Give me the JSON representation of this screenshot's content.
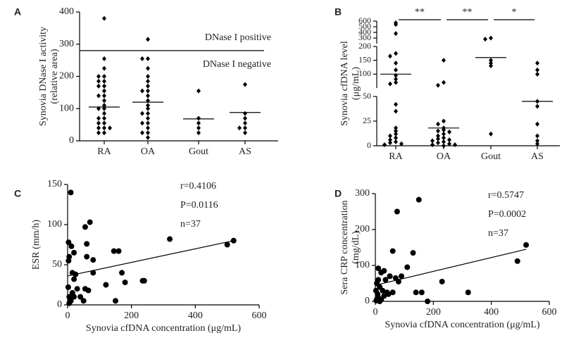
{
  "chart_data": [
    {
      "type": "strip",
      "panel": "A",
      "ylabel": [
        "Synovia DNase I activity",
        "(relative area)"
      ],
      "categories": [
        "RA",
        "OA",
        "Gout",
        "AS"
      ],
      "values": [
        [
          380,
          255,
          225,
          200,
          200,
          185,
          185,
          170,
          170,
          155,
          140,
          140,
          125,
          110,
          100,
          100,
          85,
          70,
          70,
          55,
          55,
          40,
          40,
          40,
          25,
          25
        ],
        [
          315,
          255,
          255,
          225,
          200,
          185,
          170,
          155,
          155,
          140,
          125,
          110,
          100,
          85,
          85,
          70,
          55,
          55,
          40,
          25,
          25,
          10
        ],
        [
          155,
          70,
          55,
          40,
          25
        ],
        [
          175,
          85,
          70,
          55,
          40,
          40,
          25
        ]
      ],
      "means": [
        105,
        120,
        68,
        88
      ],
      "threshold": {
        "value": 280,
        "above": "DNase I positive",
        "below": "DNase I negative"
      },
      "ylim": [
        0,
        400
      ],
      "yticks": [
        0,
        100,
        200,
        300,
        400
      ],
      "color": "#000000"
    },
    {
      "type": "strip",
      "panel": "B",
      "ylabel": [
        "Synovia cfDNA level",
        "(μg/mL)"
      ],
      "categories": [
        "RA",
        "OA",
        "Gout",
        "AS"
      ],
      "values": [
        [
          570,
          540,
          380,
          175,
          165,
          140,
          115,
          95,
          82,
          70,
          65,
          42,
          35,
          18,
          15,
          12,
          10,
          8,
          6,
          4,
          3,
          2,
          1
        ],
        [
          150,
          70,
          60,
          25,
          22,
          18,
          16,
          15,
          14,
          12,
          10,
          8,
          7,
          6,
          5,
          4,
          3,
          2,
          1,
          1,
          0
        ],
        [
          300,
          280,
          150,
          140,
          130,
          12
        ],
        [
          140,
          115,
          100,
          45,
          40,
          22,
          10,
          5,
          2
        ]
      ],
      "means": [
        100,
        18,
        160,
        45
      ],
      "ybreaks": [
        [
          0,
          50
        ],
        [
          50,
          200
        ],
        [
          200,
          600
        ]
      ],
      "ylim": [
        0,
        600
      ],
      "yticks": [
        0,
        25,
        50,
        100,
        150,
        200,
        300,
        400,
        500,
        600
      ],
      "brackets": [
        {
          "between": [
            "RA",
            "OA"
          ],
          "label": "**"
        },
        {
          "between": [
            "OA",
            "Gout"
          ],
          "label": "**"
        },
        {
          "between": [
            "Gout",
            "AS"
          ],
          "label": "*"
        }
      ],
      "color": "#000000"
    },
    {
      "type": "scatter",
      "panel": "C",
      "xlabel": "Synovia cfDNA concentration (μg/mL)",
      "ylabel": [
        "ESR (mm/h)"
      ],
      "x": [
        10,
        70,
        55,
        3,
        12,
        20,
        60,
        5,
        60,
        80,
        3,
        145,
        160,
        320,
        500,
        520,
        15,
        20,
        80,
        170,
        180,
        240,
        235,
        120,
        150,
        30,
        55,
        65,
        5,
        10,
        15,
        20,
        40,
        50,
        5,
        2,
        25
      ],
      "y": [
        140,
        103,
        97,
        78,
        73,
        65,
        76,
        60,
        60,
        56,
        55,
        67,
        67,
        82,
        75,
        80,
        40,
        32,
        40,
        40,
        28,
        30,
        30,
        25,
        5,
        20,
        20,
        18,
        10,
        5,
        15,
        10,
        10,
        5,
        2,
        22,
        38
      ],
      "trend": {
        "x": [
          0,
          520
        ],
        "y": [
          36,
          80
        ]
      },
      "annotations": [
        "r=0.4106",
        "P=0.0116",
        "n=37"
      ],
      "xlim": [
        0,
        600
      ],
      "xticks": [
        0,
        200,
        400,
        600
      ],
      "ylim": [
        0,
        150
      ],
      "yticks": [
        0,
        50,
        100,
        150
      ],
      "color": "#000000"
    },
    {
      "type": "scatter",
      "panel": "D",
      "xlabel": "Synovia cfDNA concentration (μg/mL)",
      "ylabel": [
        "Sera CRP concentration",
        "(mg/dL)"
      ],
      "x": [
        150,
        75,
        10,
        20,
        30,
        50,
        70,
        80,
        110,
        130,
        60,
        10,
        5,
        15,
        40,
        25,
        60,
        140,
        160,
        230,
        320,
        490,
        520,
        5,
        10,
        20,
        30,
        8,
        15,
        3,
        50,
        35,
        45,
        180,
        2,
        12,
        90
      ],
      "y": [
        283,
        250,
        92,
        80,
        85,
        70,
        65,
        55,
        95,
        135,
        140,
        60,
        50,
        40,
        25,
        30,
        25,
        25,
        25,
        55,
        25,
        112,
        157,
        5,
        10,
        5,
        15,
        20,
        0,
        2,
        70,
        60,
        20,
        0,
        30,
        8,
        70
      ],
      "trend": {
        "x": [
          0,
          520
        ],
        "y": [
          45,
          145
        ]
      },
      "annotations": [
        "r=0.5747",
        "P=0.0002",
        "n=37"
      ],
      "xlim": [
        0,
        600
      ],
      "xticks": [
        0,
        200,
        400,
        600
      ],
      "ylim": [
        0,
        300
      ],
      "yticks": [
        0,
        100,
        200,
        300
      ],
      "color": "#000000"
    }
  ]
}
